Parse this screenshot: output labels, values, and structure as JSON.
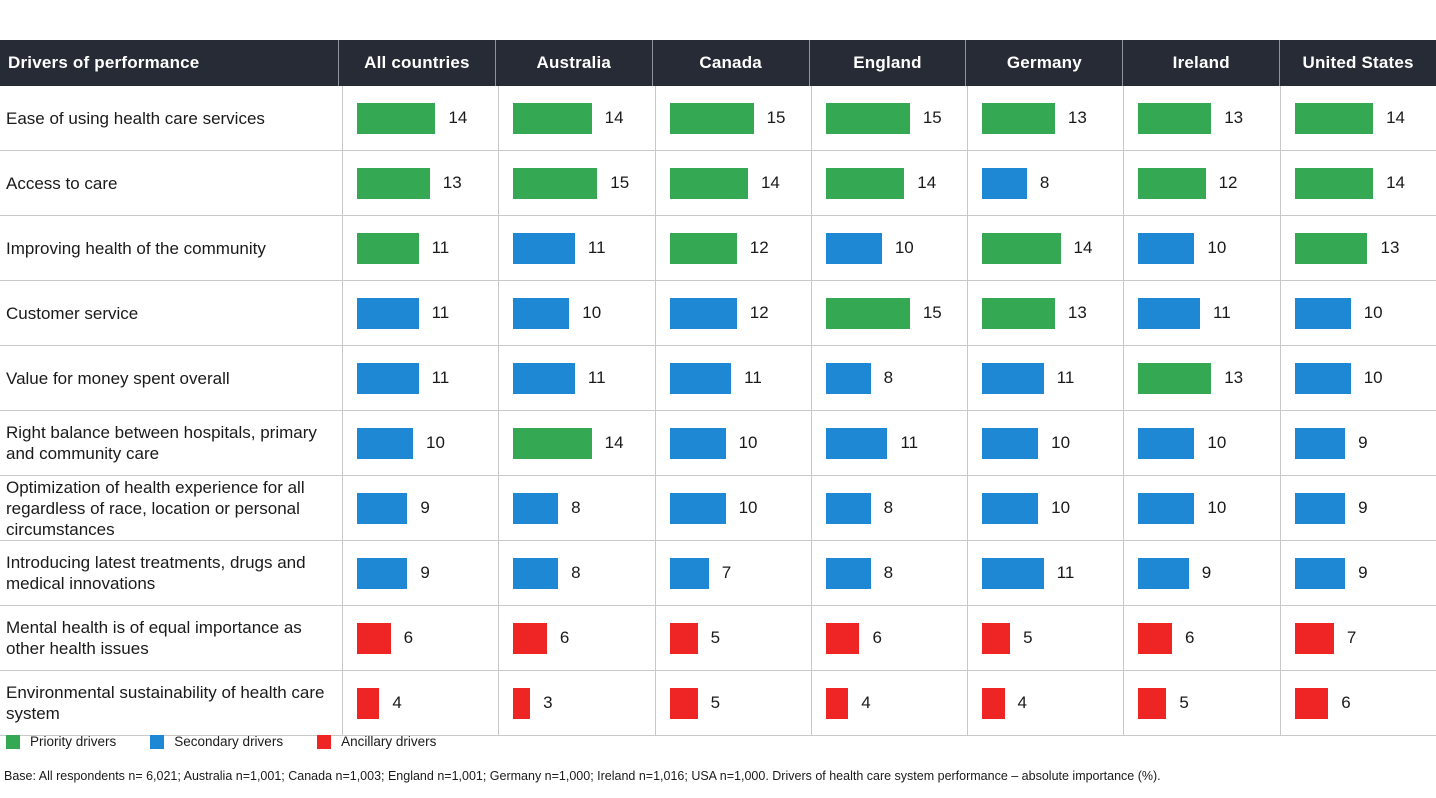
{
  "header": {
    "row_label_col": "Drivers of performance",
    "countries": [
      "All countries",
      "Australia",
      "Canada",
      "England",
      "Germany",
      "Ireland",
      "United States"
    ]
  },
  "colors": {
    "priority": "#34a853",
    "secondary": "#1e88d4",
    "ancillary": "#ee2524",
    "header_bg": "#272b35"
  },
  "legend": [
    {
      "label": "Priority drivers",
      "category": "priority"
    },
    {
      "label": "Secondary drivers",
      "category": "secondary"
    },
    {
      "label": "Ancillary drivers",
      "category": "ancillary"
    }
  ],
  "footnote": "Base: All respondents n= 6,021; Australia n=1,001; Canada n=1,003; England n=1,001; Germany n=1,000; Ireland n=1,016; USA n=1,000. Drivers of health care system performance – absolute importance (%).",
  "chart_data": {
    "type": "bar",
    "title": "Drivers of performance",
    "ylabel": "absolute importance (%)",
    "value_range": [
      0,
      15
    ],
    "legend_position": "bottom",
    "columns": [
      "All countries",
      "Australia",
      "Canada",
      "England",
      "Germany",
      "Ireland",
      "United States"
    ],
    "rows": [
      {
        "label": "Ease of using health care services",
        "values": [
          14,
          14,
          15,
          15,
          13,
          13,
          14
        ],
        "categories": [
          "priority",
          "priority",
          "priority",
          "priority",
          "priority",
          "priority",
          "priority"
        ]
      },
      {
        "label": "Access to care",
        "values": [
          13,
          15,
          14,
          14,
          8,
          12,
          14
        ],
        "categories": [
          "priority",
          "priority",
          "priority",
          "priority",
          "secondary",
          "priority",
          "priority"
        ]
      },
      {
        "label": "Improving health of the community",
        "values": [
          11,
          11,
          12,
          10,
          14,
          10,
          13
        ],
        "categories": [
          "priority",
          "secondary",
          "priority",
          "secondary",
          "priority",
          "secondary",
          "priority"
        ]
      },
      {
        "label": "Customer service",
        "values": [
          11,
          10,
          12,
          15,
          13,
          11,
          10
        ],
        "categories": [
          "secondary",
          "secondary",
          "secondary",
          "priority",
          "priority",
          "secondary",
          "secondary"
        ]
      },
      {
        "label": "Value for money spent overall",
        "values": [
          11,
          11,
          11,
          8,
          11,
          13,
          10
        ],
        "categories": [
          "secondary",
          "secondary",
          "secondary",
          "secondary",
          "secondary",
          "priority",
          "secondary"
        ]
      },
      {
        "label": "Right balance between hospitals, primary and community care",
        "values": [
          10,
          14,
          10,
          11,
          10,
          10,
          9
        ],
        "categories": [
          "secondary",
          "priority",
          "secondary",
          "secondary",
          "secondary",
          "secondary",
          "secondary"
        ]
      },
      {
        "label": "Optimization of health experience for all regardless of race, location or personal circumstances",
        "values": [
          9,
          8,
          10,
          8,
          10,
          10,
          9
        ],
        "categories": [
          "secondary",
          "secondary",
          "secondary",
          "secondary",
          "secondary",
          "secondary",
          "secondary"
        ]
      },
      {
        "label": "Introducing latest treatments, drugs and medical innovations",
        "values": [
          9,
          8,
          7,
          8,
          11,
          9,
          9
        ],
        "categories": [
          "secondary",
          "secondary",
          "secondary",
          "secondary",
          "secondary",
          "secondary",
          "secondary"
        ]
      },
      {
        "label": "Mental health is of equal importance as other health issues",
        "values": [
          6,
          6,
          5,
          6,
          5,
          6,
          7
        ],
        "categories": [
          "ancillary",
          "ancillary",
          "ancillary",
          "ancillary",
          "ancillary",
          "ancillary",
          "ancillary"
        ]
      },
      {
        "label": "Environmental sustainability of health care system",
        "values": [
          4,
          3,
          5,
          4,
          4,
          5,
          6
        ],
        "categories": [
          "ancillary",
          "ancillary",
          "ancillary",
          "ancillary",
          "ancillary",
          "ancillary",
          "ancillary"
        ]
      }
    ]
  }
}
